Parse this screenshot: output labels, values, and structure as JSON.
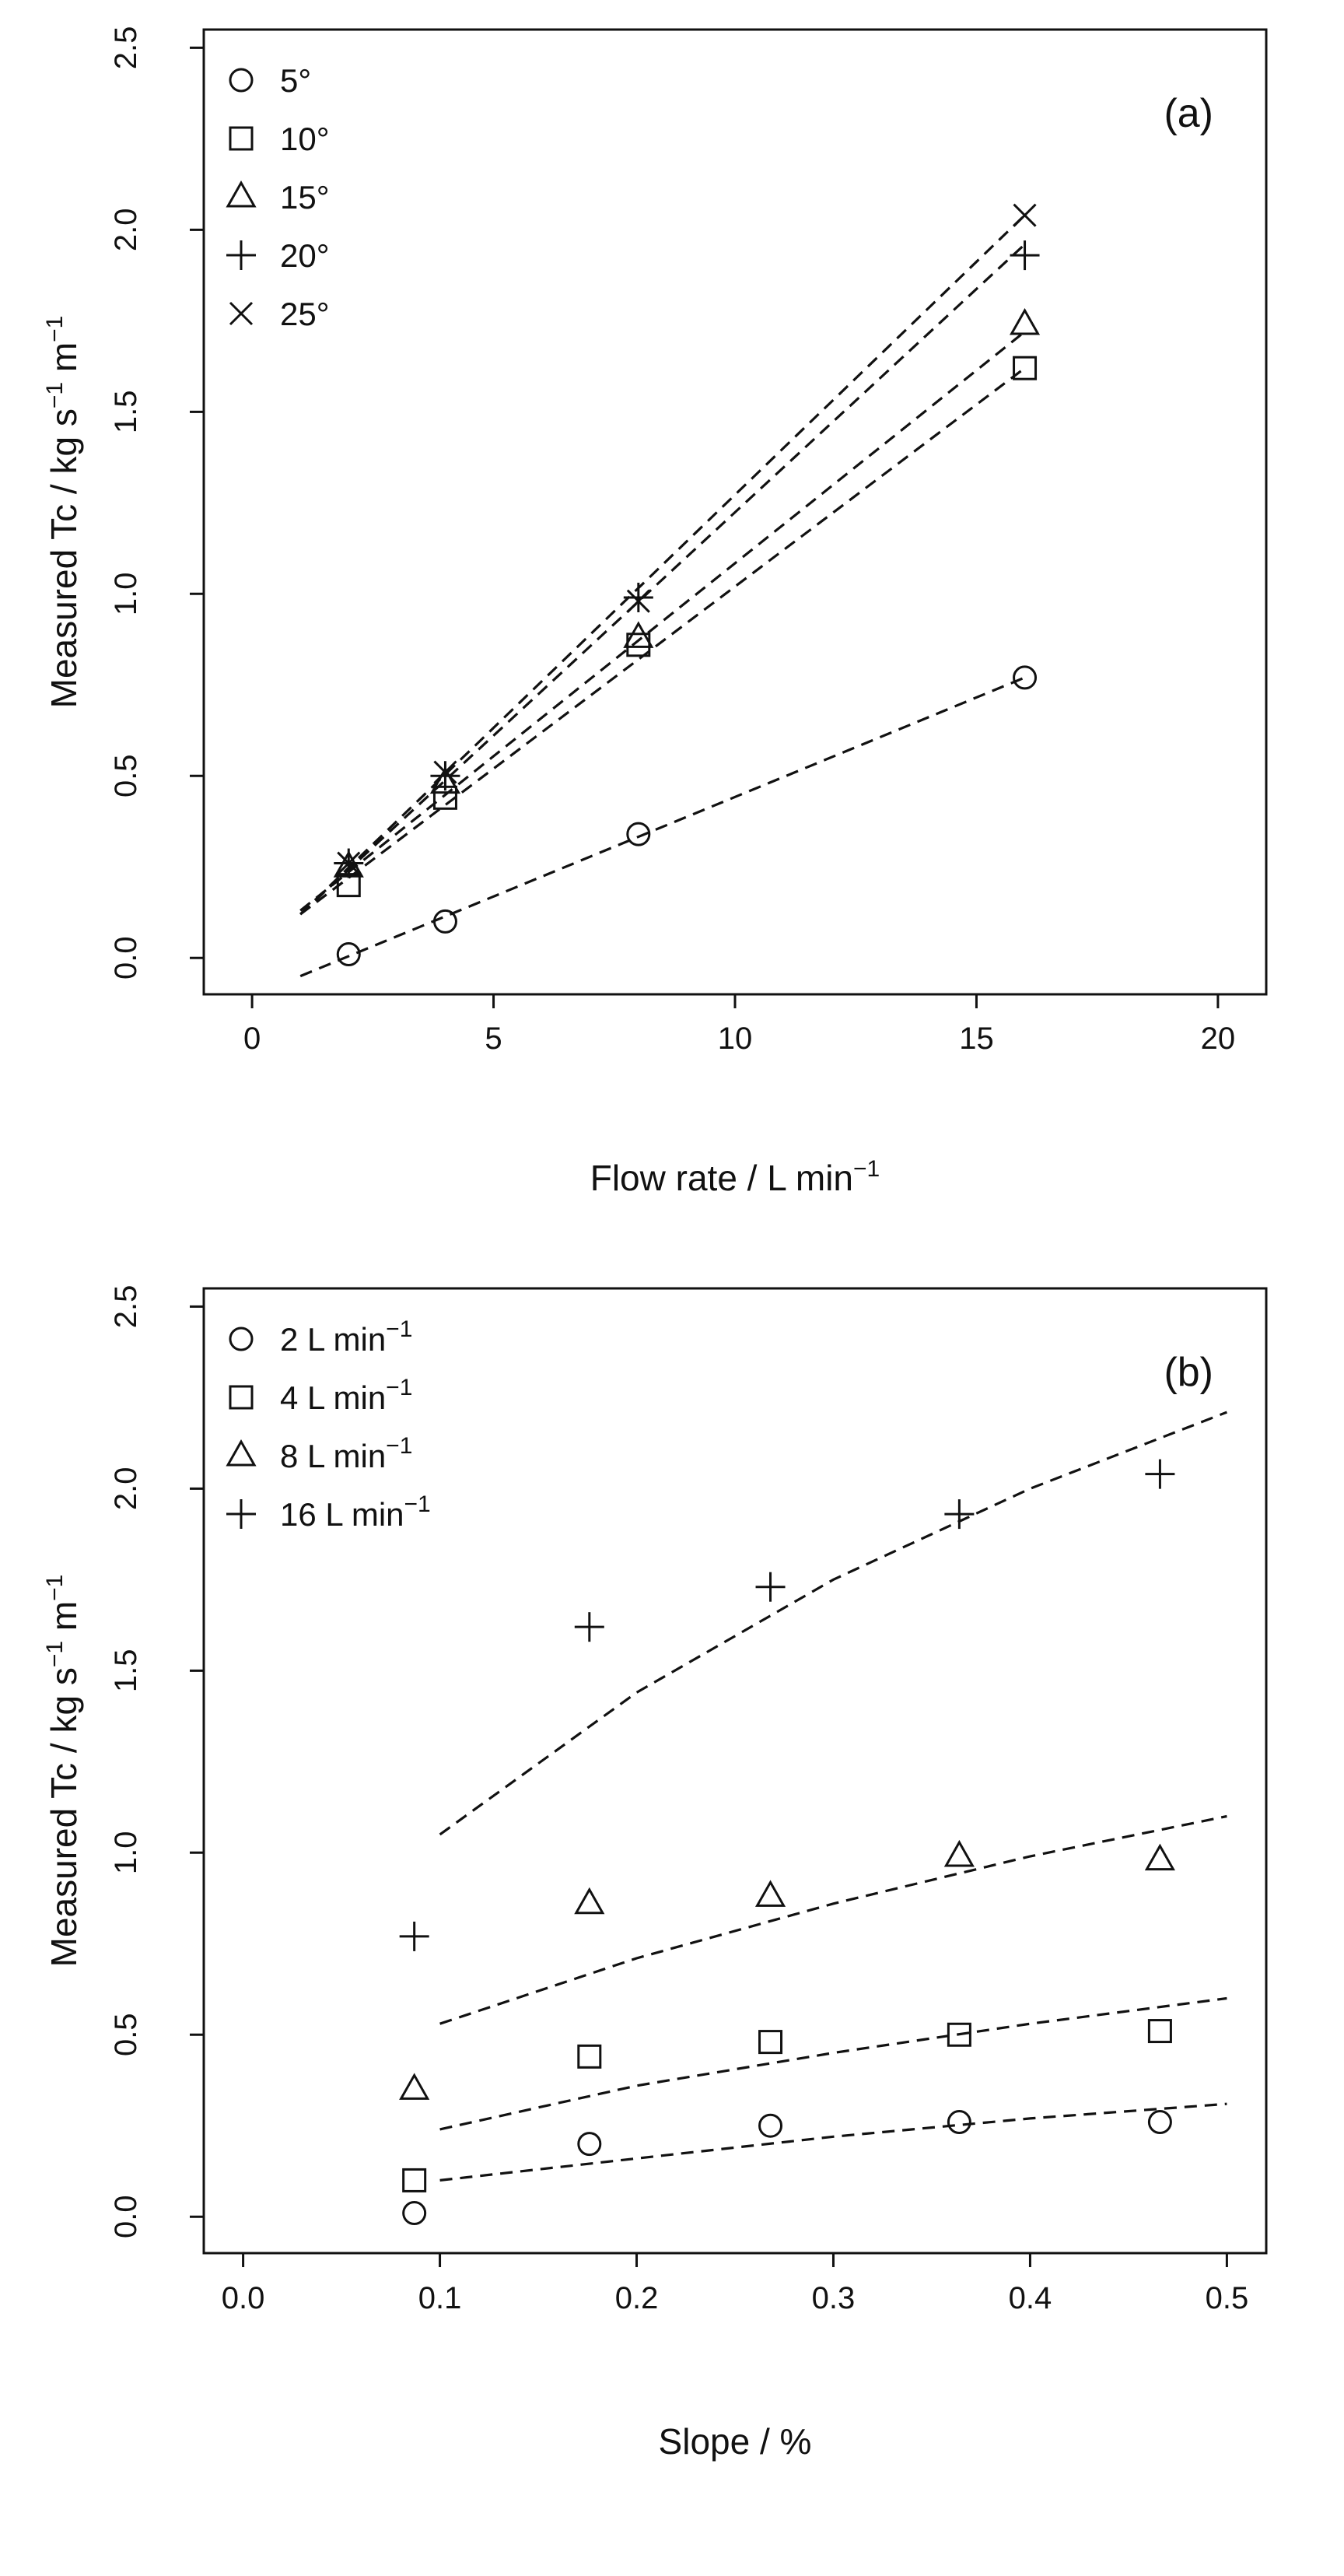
{
  "chart_data": [
    {
      "type": "scatter",
      "panel_label": "(a)",
      "xlabel": "Flow rate / L min",
      "xlabel_sup": "−1",
      "ylabel": "Measured Tc / kg s",
      "ylabel_sup1": "−1",
      "ylabel_mid": " m",
      "ylabel_sup2": "−1",
      "xlim": [
        -1,
        21
      ],
      "ylim": [
        -0.1,
        2.55
      ],
      "xticks": [
        "0",
        "5",
        "10",
        "15",
        "20"
      ],
      "yticks": [
        "0.0",
        "0.5",
        "1.0",
        "1.5",
        "2.0",
        "2.5"
      ],
      "legend_position": "top-left",
      "series": [
        {
          "name": "5°",
          "marker": "circle",
          "x": [
            2,
            4,
            8,
            16
          ],
          "y": [
            0.01,
            0.1,
            0.34,
            0.77
          ],
          "fit": [
            [
              1,
              -0.05
            ],
            [
              16,
              0.77
            ]
          ]
        },
        {
          "name": "10°",
          "marker": "square",
          "x": [
            2,
            4,
            8,
            16
          ],
          "y": [
            0.2,
            0.44,
            0.86,
            1.62
          ],
          "fit": [
            [
              1,
              0.12
            ],
            [
              16,
              1.62
            ]
          ]
        },
        {
          "name": "15°",
          "marker": "triangle",
          "x": [
            2,
            4,
            8,
            16
          ],
          "y": [
            0.25,
            0.48,
            0.88,
            1.74
          ],
          "fit": [
            [
              1,
              0.13
            ],
            [
              16,
              1.72
            ]
          ]
        },
        {
          "name": "20°",
          "marker": "plus",
          "x": [
            2,
            4,
            8,
            16
          ],
          "y": [
            0.26,
            0.5,
            0.99,
            1.93
          ],
          "fit": [
            [
              1,
              0.12
            ],
            [
              16,
              1.96
            ]
          ]
        },
        {
          "name": "25°",
          "marker": "cross",
          "x": [
            2,
            4,
            8,
            16
          ],
          "y": [
            0.26,
            0.51,
            0.98,
            2.04
          ],
          "fit": [
            [
              1,
              0.12
            ],
            [
              16,
              2.04
            ]
          ]
        }
      ]
    },
    {
      "type": "scatter",
      "panel_label": "(b)",
      "xlabel": "Slope / %",
      "xlabel_sup": "",
      "ylabel": "Measured Tc / kg s",
      "ylabel_sup1": "−1",
      "ylabel_mid": " m",
      "ylabel_sup2": "−1",
      "xlim": [
        -0.02,
        0.52
      ],
      "ylim": [
        -0.1,
        2.55
      ],
      "xticks": [
        "0.0",
        "0.1",
        "0.2",
        "0.3",
        "0.4",
        "0.5"
      ],
      "yticks": [
        "0.0",
        "0.5",
        "1.0",
        "1.5",
        "2.0",
        "2.5"
      ],
      "legend_position": "top-left",
      "series": [
        {
          "name": "2 L min",
          "name_sup": "−1",
          "marker": "circle",
          "x": [
            0.087,
            0.176,
            0.268,
            0.364,
            0.466
          ],
          "y": [
            0.01,
            0.2,
            0.25,
            0.26,
            0.26
          ],
          "fit": [
            [
              0.1,
              0.1
            ],
            [
              0.2,
              0.16
            ],
            [
              0.3,
              0.22
            ],
            [
              0.4,
              0.27
            ],
            [
              0.5,
              0.31
            ]
          ]
        },
        {
          "name": "4 L min",
          "name_sup": "−1",
          "marker": "square",
          "x": [
            0.087,
            0.176,
            0.268,
            0.364,
            0.466
          ],
          "y": [
            0.1,
            0.44,
            0.48,
            0.5,
            0.51
          ],
          "fit": [
            [
              0.1,
              0.24
            ],
            [
              0.2,
              0.36
            ],
            [
              0.3,
              0.45
            ],
            [
              0.4,
              0.53
            ],
            [
              0.5,
              0.6
            ]
          ]
        },
        {
          "name": "8 L min",
          "name_sup": "−1",
          "marker": "triangle",
          "x": [
            0.087,
            0.176,
            0.268,
            0.364,
            0.466
          ],
          "y": [
            0.35,
            0.86,
            0.88,
            0.99,
            0.98
          ],
          "fit": [
            [
              0.1,
              0.53
            ],
            [
              0.2,
              0.71
            ],
            [
              0.3,
              0.86
            ],
            [
              0.4,
              0.99
            ],
            [
              0.5,
              1.1
            ]
          ]
        },
        {
          "name": "16 L min",
          "name_sup": "−1",
          "marker": "plus",
          "x": [
            0.087,
            0.176,
            0.268,
            0.364,
            0.466
          ],
          "y": [
            0.77,
            1.62,
            1.73,
            1.93,
            2.04
          ],
          "fit": [
            [
              0.1,
              1.05
            ],
            [
              0.2,
              1.44
            ],
            [
              0.3,
              1.75
            ],
            [
              0.4,
              2.0
            ],
            [
              0.5,
              2.21
            ]
          ]
        }
      ]
    }
  ]
}
